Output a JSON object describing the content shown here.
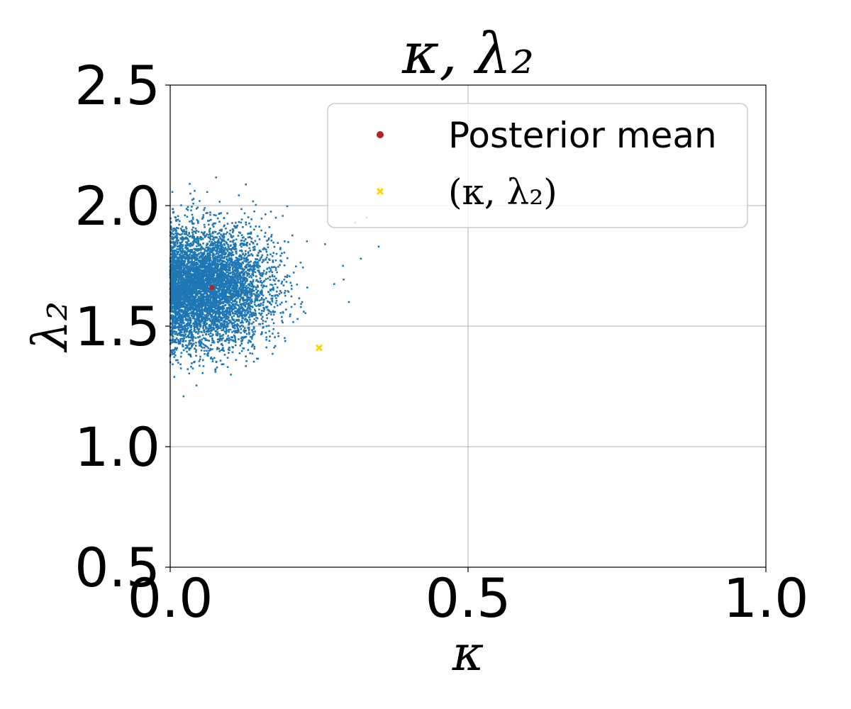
{
  "chart_data": {
    "type": "scatter",
    "title": "κ, λ₂",
    "xlabel": "κ",
    "ylabel": "λ₂",
    "xlim": [
      0.0,
      1.0
    ],
    "ylim": [
      0.5,
      2.5
    ],
    "xticks": [
      "0.0",
      "0.5",
      "1.0"
    ],
    "yticks": [
      "0.5",
      "1.0",
      "1.5",
      "2.0",
      "2.5"
    ],
    "grid": true,
    "legend_position": "upper-right",
    "series": [
      {
        "kind": "posterior-samples",
        "color": "#1f77b4",
        "n_points": 6000,
        "center": [
          0.06,
          1.66
        ],
        "spread": [
          0.045,
          0.12
        ],
        "notable_outliers": [
          [
            0.35,
            1.83
          ],
          [
            0.3,
            1.6
          ],
          [
            0.32,
            1.78
          ],
          [
            0.29,
            1.75
          ],
          [
            0.33,
            1.95
          ],
          [
            0.31,
            1.93
          ],
          [
            0.26,
            1.84
          ]
        ]
      },
      {
        "name": "Posterior mean",
        "color": "#b22222",
        "marker": "circle",
        "points": [
          [
            0.07,
            1.66
          ]
        ]
      },
      {
        "name": "(κ, λ₂)",
        "color": "#ffd700",
        "marker": "x",
        "points": [
          [
            0.25,
            1.41
          ]
        ]
      }
    ]
  }
}
